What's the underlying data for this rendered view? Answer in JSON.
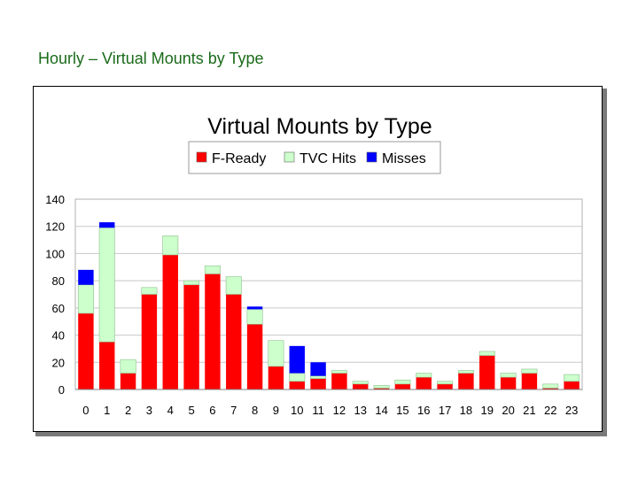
{
  "slide": {
    "title": "Hourly – Virtual Mounts by Type"
  },
  "chart_data": {
    "type": "bar",
    "stacked": true,
    "title": "Virtual Mounts by Type",
    "xlabel": "",
    "ylabel": "",
    "ylim": [
      0,
      140
    ],
    "yticks": [
      0,
      20,
      40,
      60,
      80,
      100,
      120,
      140
    ],
    "grid": true,
    "legend_position": "top-center",
    "categories": [
      "0",
      "1",
      "2",
      "3",
      "4",
      "5",
      "6",
      "7",
      "8",
      "9",
      "10",
      "11",
      "12",
      "13",
      "14",
      "15",
      "16",
      "17",
      "18",
      "19",
      "20",
      "21",
      "22",
      "23"
    ],
    "series": [
      {
        "name": "F-Ready",
        "color": "#ff0000",
        "values": [
          56,
          35,
          12,
          70,
          99,
          77,
          85,
          70,
          48,
          17,
          6,
          8,
          12,
          4,
          1,
          4,
          9,
          4,
          12,
          25,
          9,
          12,
          1,
          6
        ]
      },
      {
        "name": "TVC Hits",
        "color": "#ccffcc",
        "values": [
          21,
          84,
          10,
          5,
          14,
          3,
          6,
          13,
          11,
          19,
          6,
          2,
          2,
          2,
          2,
          3,
          3,
          2,
          2,
          3,
          3,
          3,
          3,
          5
        ]
      },
      {
        "name": "Misses",
        "color": "#0000ff",
        "values": [
          11,
          4,
          0,
          0,
          0,
          0,
          0,
          0,
          2,
          0,
          20,
          10,
          0,
          0,
          0,
          0,
          0,
          0,
          0,
          0,
          0,
          0,
          0,
          0
        ]
      }
    ]
  }
}
